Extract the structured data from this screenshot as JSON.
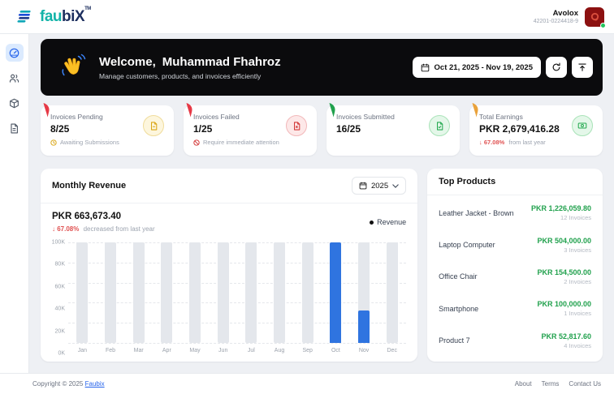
{
  "header": {
    "brand": {
      "prefix": "fau",
      "suffix": "biX",
      "tm": "TM"
    },
    "user": {
      "name": "Avolox",
      "id": "42201-0224418-9"
    }
  },
  "sidebar": {
    "items": [
      {
        "icon": "dashboard",
        "active": true
      },
      {
        "icon": "customers",
        "active": false
      },
      {
        "icon": "products",
        "active": false
      },
      {
        "icon": "invoices",
        "active": false
      }
    ]
  },
  "welcome": {
    "greeting": "Welcome,",
    "name": "Muhammad Fhahroz",
    "subtitle": "Manage customers, products, and invoices efficiently",
    "date_range": "Oct 21, 2025 - Nov 19, 2025",
    "action_icons": [
      "calendar",
      "refresh",
      "export"
    ]
  },
  "stats": [
    {
      "label": "Invoices Pending",
      "value": "8/25",
      "status": "Awaiting Submissions",
      "status_icon": "clock",
      "colors": {
        "ribbon": "#e63946",
        "icon_bg": "#fdf6dd",
        "icon_border": "#f0dc9b",
        "icon": "#d9a514"
      }
    },
    {
      "label": "Invoices Failed",
      "value": "1/25",
      "status": "Require immediate attention",
      "status_icon": "ban",
      "colors": {
        "ribbon": "#e63946",
        "icon_bg": "#fde8e8",
        "icon_border": "#f2b8ba",
        "icon": "#d23434"
      }
    },
    {
      "label": "Invoices Submitted",
      "value": "16/25",
      "colors": {
        "ribbon": "#21a14d",
        "icon_bg": "#e4f7e9",
        "icon_border": "#a9e3b8",
        "icon": "#23a94f"
      }
    },
    {
      "label": "Total Earnings",
      "value": "PKR 2,679,416.28",
      "change_arrow": "↓",
      "change_pct": "67.08%",
      "change_note": "from last year",
      "colors": {
        "ribbon": "#e9a23b",
        "icon_bg": "#e4f7e9",
        "icon_border": "#a9e3b8",
        "icon": "#23a94f"
      }
    }
  ],
  "revenue": {
    "title": "Monthly Revenue",
    "year": "2025",
    "total": "PKR 663,673.40",
    "change_arrow": "↓",
    "change_pct": "67.08%",
    "change_note": "decreased from last year",
    "legend_label": "Revenue"
  },
  "chart_data": {
    "type": "bar",
    "title": "Monthly Revenue",
    "categories": [
      "Jan",
      "Feb",
      "Mar",
      "Apr",
      "May",
      "Jun",
      "Jul",
      "Aug",
      "Sep",
      "Oct",
      "Nov",
      "Dec"
    ],
    "series": [
      {
        "name": "Revenue",
        "values": [
          0,
          0,
          0,
          0,
          0,
          0,
          0,
          0,
          0,
          100000,
          32000,
          0
        ]
      }
    ],
    "ylim": [
      0,
      100000
    ],
    "yticks": [
      "100K",
      "80K",
      "60K",
      "40K",
      "20K",
      "0K"
    ],
    "grid": "dashed-horizontal",
    "legend_position": "top-right",
    "bar_color": "#2f74e0",
    "track_color": "#e4e7ec",
    "track_max": 100000
  },
  "top_products": {
    "title": "Top Products",
    "items": [
      {
        "name": "Leather Jacket - Brown",
        "amount": "PKR 1,226,059.80",
        "invoices": "12 Invoices"
      },
      {
        "name": "Laptop Computer",
        "amount": "PKR 504,000.00",
        "invoices": "3 Invoices"
      },
      {
        "name": "Office Chair",
        "amount": "PKR 154,500.00",
        "invoices": "2 Invoices"
      },
      {
        "name": "Smartphone",
        "amount": "PKR 100,000.00",
        "invoices": "1 Invoices"
      },
      {
        "name": "Product 7",
        "amount": "PKR 52,817.60",
        "invoices": "4 Invoices"
      }
    ]
  },
  "footer": {
    "copyright_prefix": "Copyright © 2025 ",
    "copyright_link": "Faubix",
    "links": [
      "About",
      "Terms",
      "Contact Us"
    ]
  }
}
